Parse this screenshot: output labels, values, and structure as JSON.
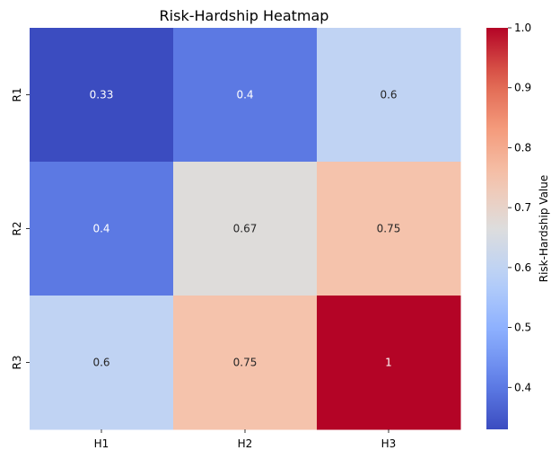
{
  "chart_data": {
    "type": "heatmap",
    "title": "Risk-Hardship Heatmap",
    "xlabel": "",
    "ylabel": "",
    "x_categories": [
      "H1",
      "H2",
      "H3"
    ],
    "y_categories": [
      "R1",
      "R2",
      "R3"
    ],
    "values": [
      [
        0.33,
        0.4,
        0.6
      ],
      [
        0.4,
        0.67,
        0.75
      ],
      [
        0.6,
        0.75,
        1
      ]
    ],
    "cell_labels": [
      [
        "0.33",
        "0.4",
        "0.6"
      ],
      [
        "0.4",
        "0.67",
        "0.75"
      ],
      [
        "0.6",
        "0.75",
        "1"
      ]
    ],
    "colormap": "coolwarm",
    "vmin": 0.33,
    "vmax": 1.0,
    "colorbar": {
      "label": "Risk-Hardship Value",
      "ticks": [
        0.4,
        0.5,
        0.6,
        0.7,
        0.8,
        0.9,
        1.0
      ],
      "tick_labels": [
        "0.4",
        "0.5",
        "0.6",
        "0.7",
        "0.8",
        "0.9",
        "1.0"
      ]
    },
    "grid": false,
    "legend": "colorbar-right"
  }
}
